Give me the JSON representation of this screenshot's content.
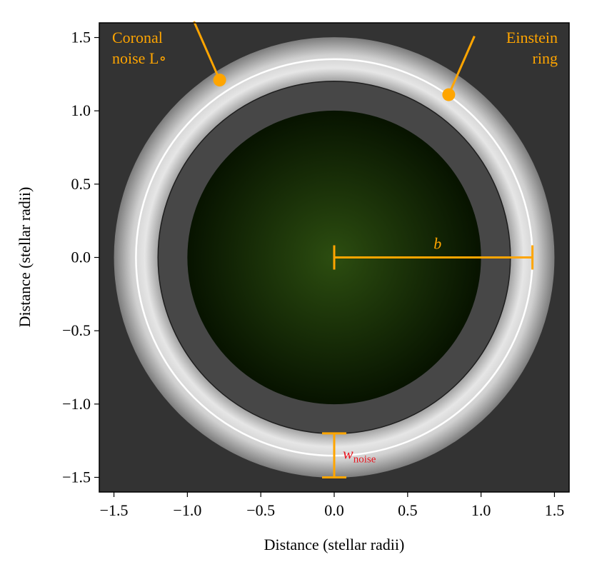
{
  "chart_data": {
    "type": "rings",
    "xlabel": "Distance (stellar radii)",
    "ylabel": "Distance (stellar radii)",
    "xlim": [
      -1.6,
      1.6
    ],
    "ylim": [
      -1.6,
      1.6
    ],
    "xticks": [
      {
        "value": -1.5,
        "label": "−1.5"
      },
      {
        "value": -1.0,
        "label": "−1.0"
      },
      {
        "value": -0.5,
        "label": "−0.5"
      },
      {
        "value": 0,
        "label": "0.0"
      },
      {
        "value": 0.5,
        "label": "0.5"
      },
      {
        "value": 1.0,
        "label": "1.0"
      },
      {
        "value": 1.5,
        "label": "1.5"
      }
    ],
    "yticks": [
      {
        "value": -1.5,
        "label": "−1.5"
      },
      {
        "value": -1.0,
        "label": "−1.0"
      },
      {
        "value": -0.5,
        "label": "−0.5"
      },
      {
        "value": 0,
        "label": "0.0"
      },
      {
        "value": 0.5,
        "label": "0.5"
      },
      {
        "value": 1.0,
        "label": "1.0"
      },
      {
        "value": 1.5,
        "label": "1.5"
      }
    ],
    "background_color": "#333333",
    "star_radius": 1.0,
    "inner_radius": 1.2,
    "einstein_radius": 1.35,
    "outer_radius": 1.5,
    "annotation_color": "#ffa500",
    "annotations": [
      {
        "lines": [
          "Coronal",
          "noise L∘"
        ],
        "x": -0.78,
        "y": 1.21
      },
      {
        "lines": [
          "Einstein",
          "ring"
        ],
        "x": 0.78,
        "y": 1.11
      }
    ],
    "b_label": "b",
    "w_label": "wnoise",
    "w_color": "#e8141e"
  }
}
